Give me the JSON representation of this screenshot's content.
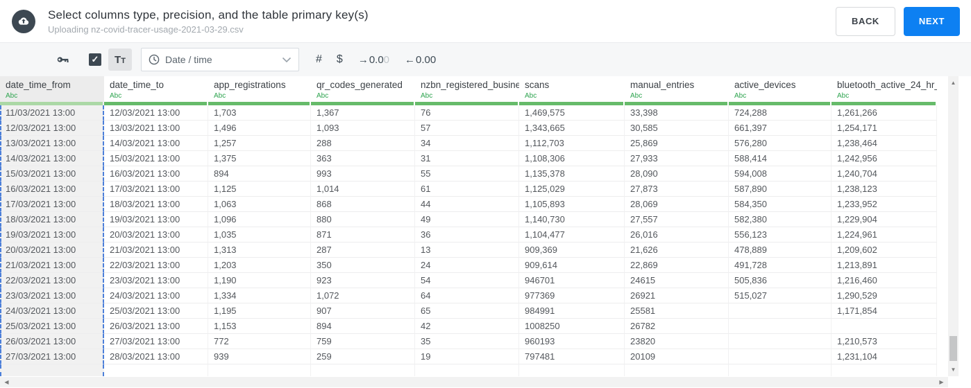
{
  "header": {
    "title": "Select columns type, precision, and the table primary key(s)",
    "subtitle": "Uploading nz-covid-tracer-usage-2021-03-29.csv",
    "back_label": "BACK",
    "next_label": "NEXT"
  },
  "toolbar": {
    "tt_label": "Tt",
    "dropdown_selected": "Date / time",
    "number_symbol": "#",
    "currency_symbol": "$",
    "precision_add": {
      "arrow": "→",
      "value": "0.0",
      "faded": "0"
    },
    "precision_remove": {
      "arrow": "←",
      "value": "0.00"
    },
    "checkbox_checked": true
  },
  "icons": {
    "check_glyph": "✓",
    "up_arrow": "▲",
    "down_arrow": "▼",
    "left_arrow": "◀",
    "right_arrow": "▶"
  },
  "colors": {
    "accent_blue": "#0d80f2",
    "type_green": "#2ea44f",
    "strip_green": "#66bb6a",
    "strip_green_selected": "#abd8a6",
    "selection_dash_blue": "#4c7fd9"
  },
  "table": {
    "type_badge": "Abc",
    "columns": [
      {
        "id": "date_time_from",
        "label": "date_time_from",
        "width": 150,
        "selected": true
      },
      {
        "id": "date_time_to",
        "label": "date_time_to",
        "width": 150,
        "selected": false
      },
      {
        "id": "app_registrations",
        "label": "app_registrations",
        "width": 148,
        "selected": false
      },
      {
        "id": "qr_codes_generated",
        "label": "qr_codes_generated",
        "width": 150,
        "selected": false
      },
      {
        "id": "nzbn_registered_busine",
        "label": "nzbn_registered_busine",
        "width": 150,
        "selected": false
      },
      {
        "id": "scans",
        "label": "scans",
        "width": 152,
        "selected": false
      },
      {
        "id": "manual_entries",
        "label": "manual_entries",
        "width": 150,
        "selected": false
      },
      {
        "id": "active_devices",
        "label": "active_devices",
        "width": 148,
        "selected": false
      },
      {
        "id": "bluetooth_active_24_hr_",
        "label": "bluetooth_active_24_hr_",
        "width": 152,
        "selected": false
      }
    ],
    "rows": [
      [
        "11/03/2021 13:00",
        "12/03/2021 13:00",
        "1,703",
        "1,367",
        "76",
        "1,469,575",
        "33,398",
        "724,288",
        "1,261,266"
      ],
      [
        "12/03/2021 13:00",
        "13/03/2021 13:00",
        "1,496",
        "1,093",
        "57",
        "1,343,665",
        "30,585",
        "661,397",
        "1,254,171"
      ],
      [
        "13/03/2021 13:00",
        "14/03/2021 13:00",
        "1,257",
        "288",
        "34",
        "1,112,703",
        "25,869",
        "576,280",
        "1,238,464"
      ],
      [
        "14/03/2021 13:00",
        "15/03/2021 13:00",
        "1,375",
        "363",
        "31",
        "1,108,306",
        "27,933",
        "588,414",
        "1,242,956"
      ],
      [
        "15/03/2021 13:00",
        "16/03/2021 13:00",
        "894",
        "993",
        "55",
        "1,135,378",
        "28,090",
        "594,008",
        "1,240,704"
      ],
      [
        "16/03/2021 13:00",
        "17/03/2021 13:00",
        "1,125",
        "1,014",
        "61",
        "1,125,029",
        "27,873",
        "587,890",
        "1,238,123"
      ],
      [
        "17/03/2021 13:00",
        "18/03/2021 13:00",
        "1,063",
        "868",
        "44",
        "1,105,893",
        "28,069",
        "584,350",
        "1,233,952"
      ],
      [
        "18/03/2021 13:00",
        "19/03/2021 13:00",
        "1,096",
        "880",
        "49",
        "1,140,730",
        "27,557",
        "582,380",
        "1,229,904"
      ],
      [
        "19/03/2021 13:00",
        "20/03/2021 13:00",
        "1,035",
        "871",
        "36",
        "1,104,477",
        "26,016",
        "556,123",
        "1,224,961"
      ],
      [
        "20/03/2021 13:00",
        "21/03/2021 13:00",
        "1,313",
        "287",
        "13",
        "909,369",
        "21,626",
        "478,889",
        "1,209,602"
      ],
      [
        "21/03/2021 13:00",
        "22/03/2021 13:00",
        "1,203",
        "350",
        "24",
        "909,614",
        "22,869",
        "491,728",
        "1,213,891"
      ],
      [
        "22/03/2021 13:00",
        "23/03/2021 13:00",
        "1,190",
        "923",
        "54",
        "946701",
        "24615",
        "505,836",
        "1,216,460"
      ],
      [
        "23/03/2021 13:00",
        "24/03/2021 13:00",
        "1,334",
        "1,072",
        "64",
        "977369",
        "26921",
        "515,027",
        "1,290,529"
      ],
      [
        "24/03/2021 13:00",
        "25/03/2021 13:00",
        "1,195",
        "907",
        "65",
        "984991",
        "25581",
        "",
        "1,171,854"
      ],
      [
        "25/03/2021 13:00",
        "26/03/2021 13:00",
        "1,153",
        "894",
        "42",
        "1008250",
        "26782",
        "",
        ""
      ],
      [
        "26/03/2021 13:00",
        "27/03/2021 13:00",
        "772",
        "759",
        "35",
        "960193",
        "23820",
        "",
        "1,210,573"
      ],
      [
        "27/03/2021 13:00",
        "28/03/2021 13:00",
        "939",
        "259",
        "19",
        "797481",
        "20109",
        "",
        "1,231,104"
      ]
    ]
  }
}
